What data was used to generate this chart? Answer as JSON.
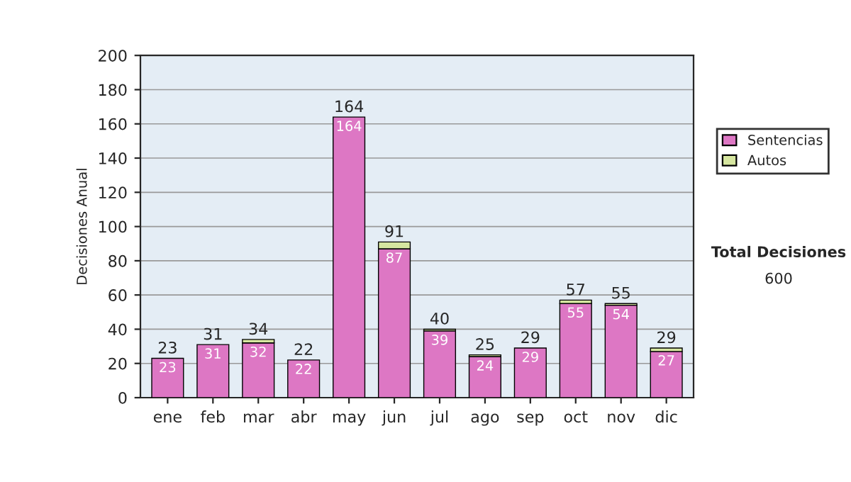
{
  "chart_data": {
    "type": "bar",
    "stacked": true,
    "ylabel": "Decisiones Anual",
    "categories": [
      "ene",
      "feb",
      "mar",
      "abr",
      "may",
      "jun",
      "jul",
      "ago",
      "sep",
      "oct",
      "nov",
      "dic"
    ],
    "series": [
      {
        "name": "Sentencias",
        "color": "#dd77c4",
        "values": [
          23,
          31,
          32,
          22,
          164,
          87,
          39,
          24,
          29,
          55,
          54,
          27
        ],
        "value_labels": [
          "23",
          "31",
          "32",
          "22",
          "164",
          "87",
          "39",
          "24",
          "29",
          "55",
          "54",
          "27"
        ]
      },
      {
        "name": "Autos",
        "color": "#d6e6a0",
        "values": [
          0,
          0,
          2,
          0,
          0,
          4,
          1,
          1,
          0,
          2,
          1,
          2
        ]
      }
    ],
    "totals": [
      "23",
      "31",
      "34",
      "22",
      "164",
      "91",
      "40",
      "25",
      "29",
      "57",
      "55",
      "29"
    ],
    "ylim": [
      0,
      200
    ],
    "yticks": [
      0,
      20,
      40,
      60,
      80,
      100,
      120,
      140,
      160,
      180,
      200
    ],
    "grid": "y",
    "legend": "right",
    "annotations": [
      "Total Decisiones",
      "600"
    ]
  }
}
